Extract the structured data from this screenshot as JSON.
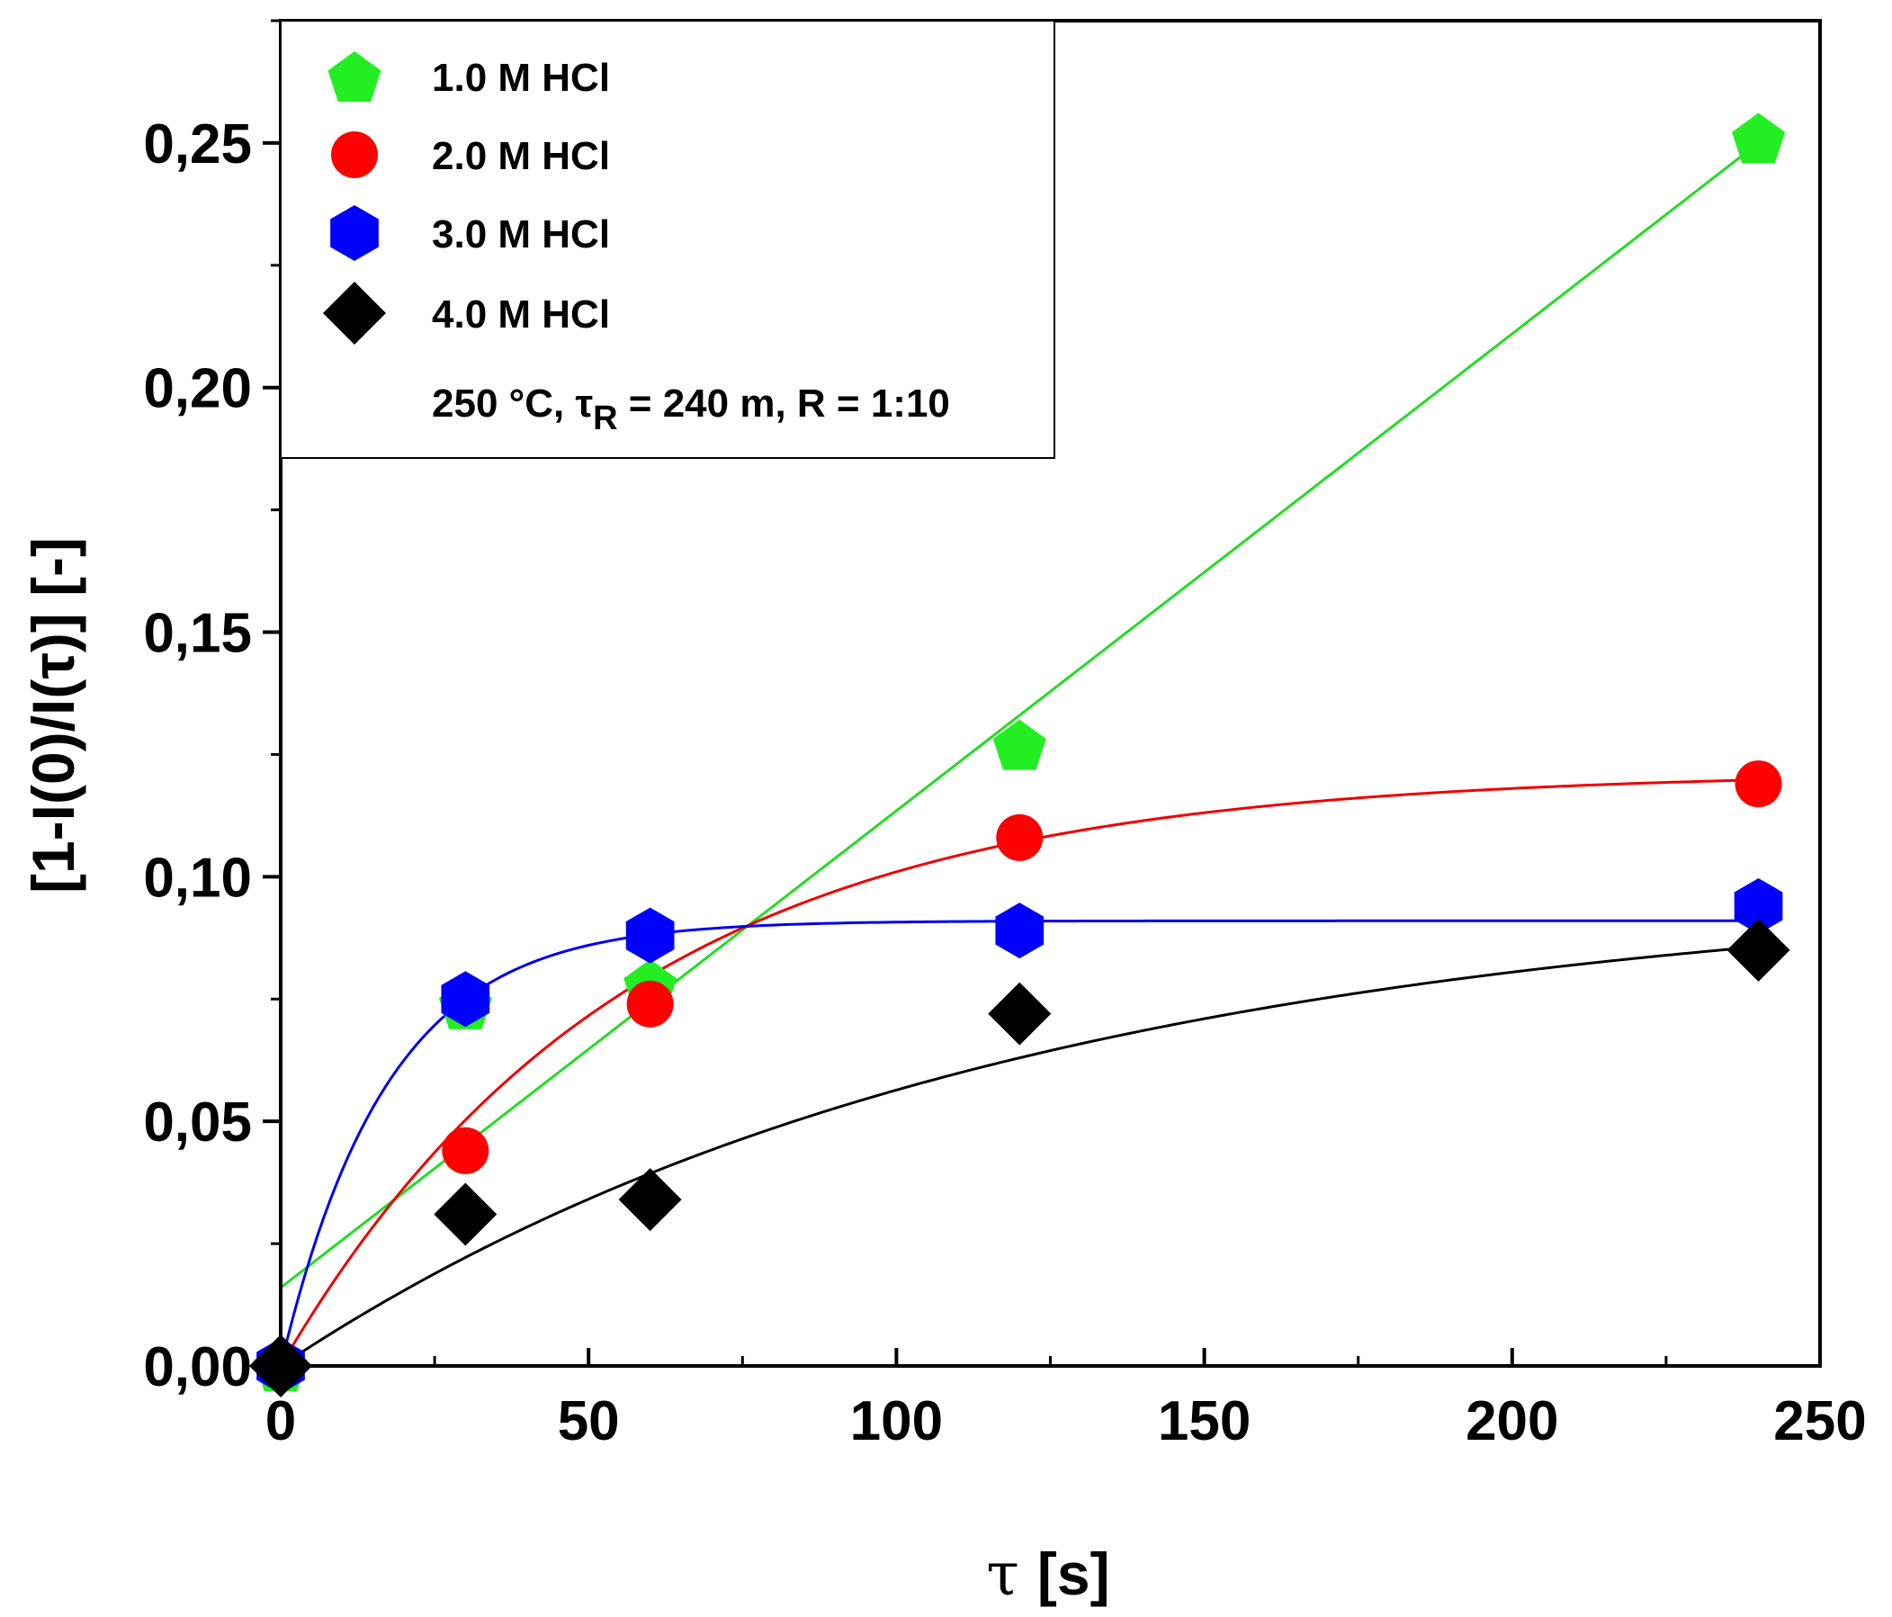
{
  "chart_data": {
    "type": "scatter",
    "title": "",
    "xlabel_symbol": "τ",
    "xlabel": "[s]",
    "ylabel": "[1-I(0)/I(τ)] [-]",
    "xlim": [
      0,
      250
    ],
    "ylim": [
      0,
      0.275
    ],
    "grid": false,
    "x_ticks": [
      0,
      50,
      100,
      150,
      200,
      250
    ],
    "x_tick_labels": [
      "0",
      "50",
      "100",
      "150",
      "200",
      "250"
    ],
    "y_ticks": [
      0,
      0.05,
      0.1,
      0.15,
      0.2,
      0.25
    ],
    "y_tick_labels": [
      "0,00",
      "0,05",
      "0,10",
      "0,15",
      "0,20",
      "0,25"
    ],
    "legend_position": "top-left",
    "annotation": {
      "prefix": "250 °C, τ",
      "subscript": "R",
      "suffix": " = 240 m, R = 1:10"
    },
    "series": [
      {
        "name": "1.0 M HCl",
        "marker": "pentagon",
        "color": "#22ee22",
        "line_color": "#22dd22",
        "x": [
          0,
          30,
          60,
          120,
          240
        ],
        "y": [
          0.0,
          0.074,
          0.078,
          0.127,
          0.251
        ],
        "fit": {
          "kind": "linear",
          "intercept": 0.016,
          "slope": 0.000975
        }
      },
      {
        "name": "2.0 M HCl",
        "marker": "circle",
        "color": "#ff0000",
        "line_color": "#ee0000",
        "x": [
          0,
          30,
          60,
          120,
          240
        ],
        "y": [
          0.0,
          0.044,
          0.074,
          0.108,
          0.119
        ],
        "fit": {
          "kind": "exp_saturation",
          "a": 0.1215,
          "k": 0.0178
        }
      },
      {
        "name": "3.0 M HCl",
        "marker": "hexagon",
        "color": "#0000ff",
        "line_color": "#0000ee",
        "x": [
          0,
          30,
          60,
          120,
          240
        ],
        "y": [
          0.0,
          0.075,
          0.088,
          0.089,
          0.094
        ],
        "fit": {
          "kind": "exp_saturation",
          "a": 0.091,
          "k": 0.058
        }
      },
      {
        "name": "4.0 M HCl",
        "marker": "diamond",
        "color": "#000000",
        "line_color": "#000000",
        "x": [
          0,
          30,
          60,
          120,
          240
        ],
        "y": [
          0.0,
          0.031,
          0.034,
          0.072,
          0.085
        ],
        "fit": {
          "kind": "exp_saturation",
          "a": 0.0985,
          "k": 0.0085
        }
      }
    ]
  }
}
